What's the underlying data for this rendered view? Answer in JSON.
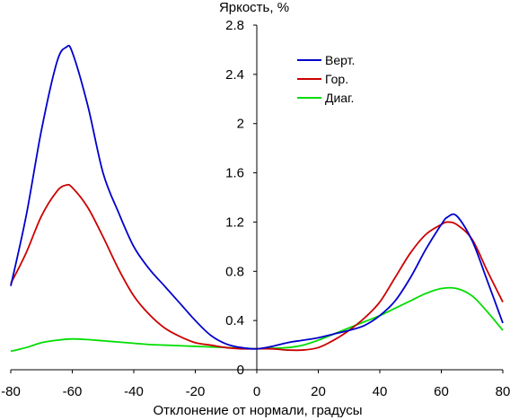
{
  "chart_data": {
    "type": "line",
    "title": "",
    "ylabel": "Яркость, %",
    "xlabel": "Отклонение от нормали, градусы",
    "xlim": [
      -80,
      80
    ],
    "ylim": [
      0,
      2.8
    ],
    "x_ticks": [
      -80,
      -60,
      -40,
      -20,
      0,
      20,
      40,
      60,
      80
    ],
    "x_tick_labels": [
      "-80",
      "-60",
      "-40",
      "-20",
      "0",
      "20",
      "40",
      "60",
      "80"
    ],
    "y_ticks": [
      0,
      0.4,
      0.8,
      1.2,
      1.6,
      2,
      2.4,
      2.8
    ],
    "y_tick_labels": [
      "0",
      "0.4",
      "0.8",
      "1.2",
      "1.6",
      "2",
      "2.4",
      "2.8"
    ],
    "grid": false,
    "legend_position": "top-right",
    "series": [
      {
        "name": "Верт.",
        "color": "#0000cc",
        "x": [
          -80,
          -75,
          -70,
          -65,
          -62,
          -60,
          -55,
          -50,
          -45,
          -40,
          -35,
          -30,
          -25,
          -20,
          -15,
          -10,
          -5,
          0,
          5,
          10,
          15,
          20,
          25,
          30,
          35,
          40,
          45,
          50,
          55,
          60,
          62,
          65,
          70,
          75,
          80
        ],
        "y": [
          0.68,
          1.25,
          1.95,
          2.5,
          2.62,
          2.58,
          2.15,
          1.6,
          1.28,
          1.0,
          0.82,
          0.68,
          0.54,
          0.4,
          0.28,
          0.21,
          0.18,
          0.17,
          0.19,
          0.22,
          0.24,
          0.26,
          0.29,
          0.32,
          0.36,
          0.44,
          0.56,
          0.75,
          0.98,
          1.18,
          1.24,
          1.25,
          1.05,
          0.72,
          0.38
        ]
      },
      {
        "name": "Гор.",
        "color": "#cc0000",
        "x": [
          -80,
          -75,
          -70,
          -65,
          -62,
          -60,
          -55,
          -50,
          -45,
          -40,
          -35,
          -30,
          -25,
          -20,
          -15,
          -10,
          -5,
          0,
          5,
          10,
          15,
          20,
          25,
          30,
          35,
          40,
          45,
          50,
          55,
          60,
          62,
          65,
          70,
          75,
          80
        ],
        "y": [
          0.7,
          0.95,
          1.25,
          1.45,
          1.5,
          1.48,
          1.32,
          1.08,
          0.82,
          0.6,
          0.45,
          0.34,
          0.27,
          0.22,
          0.2,
          0.18,
          0.17,
          0.17,
          0.17,
          0.16,
          0.16,
          0.18,
          0.24,
          0.32,
          0.42,
          0.55,
          0.75,
          0.95,
          1.1,
          1.18,
          1.2,
          1.18,
          1.06,
          0.8,
          0.55
        ]
      },
      {
        "name": "Диаг.",
        "color": "#00dd00",
        "x": [
          -80,
          -75,
          -70,
          -65,
          -60,
          -55,
          -50,
          -45,
          -40,
          -35,
          -30,
          -25,
          -20,
          -15,
          -10,
          -5,
          0,
          5,
          10,
          15,
          20,
          25,
          30,
          35,
          40,
          45,
          50,
          55,
          60,
          65,
          70,
          75,
          80
        ],
        "y": [
          0.15,
          0.18,
          0.22,
          0.24,
          0.25,
          0.245,
          0.235,
          0.225,
          0.215,
          0.205,
          0.2,
          0.195,
          0.19,
          0.185,
          0.18,
          0.175,
          0.17,
          0.175,
          0.18,
          0.2,
          0.24,
          0.29,
          0.34,
          0.39,
          0.44,
          0.5,
          0.56,
          0.62,
          0.66,
          0.66,
          0.6,
          0.47,
          0.32
        ]
      }
    ]
  }
}
